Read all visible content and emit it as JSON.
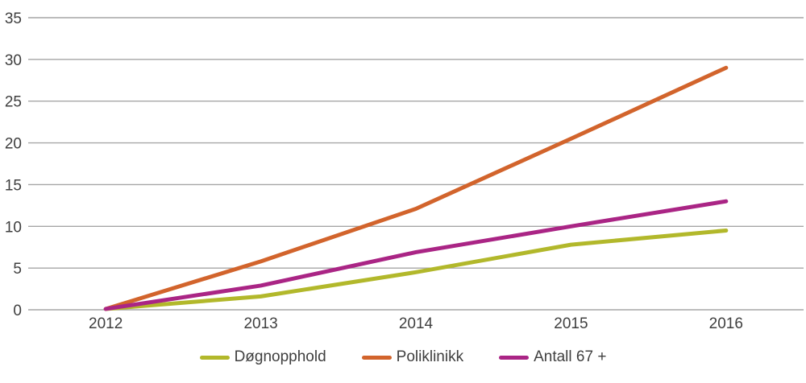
{
  "chart_data": {
    "type": "line",
    "title": "",
    "xlabel": "",
    "ylabel": "",
    "categories": [
      "2012",
      "2013",
      "2014",
      "2015",
      "2016"
    ],
    "series": [
      {
        "name": "Døgnopphold",
        "color": "#b2b82b",
        "values": [
          0.1,
          1.6,
          4.5,
          7.8,
          9.5
        ]
      },
      {
        "name": "Poliklinikk",
        "color": "#d2642c",
        "values": [
          0.1,
          5.8,
          12.1,
          20.5,
          29.0
        ]
      },
      {
        "name": "Antall 67 +",
        "color": "#aa2585",
        "values": [
          0.1,
          2.9,
          6.9,
          10.0,
          13.0
        ]
      }
    ],
    "ylim": [
      0,
      35
    ],
    "ytick_step": 5,
    "ytick_labels": [
      "0",
      "5",
      "10",
      "15",
      "20",
      "25",
      "30",
      "35"
    ],
    "grid": "horizontal",
    "gridline_color": "#a6a6a6",
    "text_color": "#3f3f3f",
    "background_color": "#ffffff",
    "line_width": 5,
    "legend_position": "bottom-center"
  }
}
